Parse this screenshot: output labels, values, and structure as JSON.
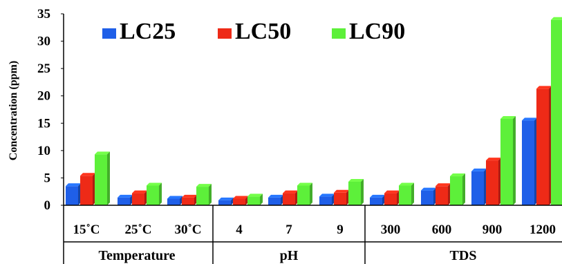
{
  "chart_data": {
    "type": "bar",
    "ylabel": "Concentration (ppm)",
    "ylim": [
      0,
      35
    ],
    "yticks": [
      "0",
      "5",
      "10",
      "15",
      "20",
      "25",
      "30",
      "35"
    ],
    "grid": false,
    "legend_position": "top-left",
    "categories": [
      "15˚C",
      "25˚C",
      "30˚C",
      "4",
      "7",
      "9",
      "300",
      "600",
      "900",
      "1200"
    ],
    "groups": [
      {
        "label": "Temperature",
        "count": 3
      },
      {
        "label": "pH",
        "count": 3
      },
      {
        "label": "TDS",
        "count": 4
      }
    ],
    "series": [
      {
        "name": "LC25",
        "color": "#1f5fe8",
        "values": [
          3.5,
          1.4,
          1.2,
          0.9,
          1.4,
          1.6,
          1.4,
          2.7,
          6.2,
          15.5
        ]
      },
      {
        "name": "LC50",
        "color": "#ee2a17",
        "values": [
          5.4,
          2.2,
          1.4,
          1.2,
          2.2,
          2.3,
          2.2,
          3.5,
          8.2,
          21.3
        ]
      },
      {
        "name": "LC90",
        "color": "#5df03a",
        "values": [
          9.3,
          3.6,
          3.4,
          1.6,
          3.6,
          4.3,
          3.6,
          5.3,
          15.8,
          33.9
        ]
      }
    ]
  }
}
